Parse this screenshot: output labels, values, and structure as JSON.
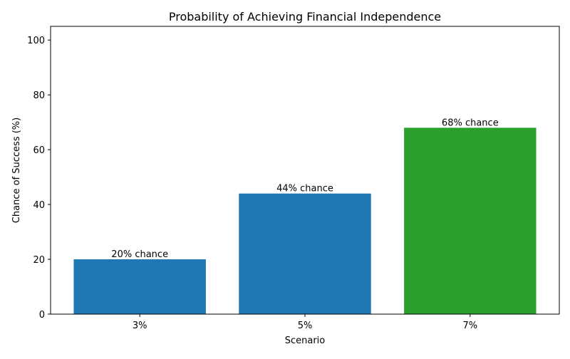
{
  "chart_data": {
    "type": "bar",
    "title": "Probability of Achieving Financial Independence",
    "xlabel": "Scenario",
    "ylabel": "Chance of Success (%)",
    "categories": [
      "3%",
      "5%",
      "7%"
    ],
    "values": [
      20,
      44,
      68
    ],
    "data_labels": [
      "20% chance",
      "44% chance",
      "68% chance"
    ],
    "colors": [
      "#1f77b4",
      "#1f77b4",
      "#2ca02c"
    ],
    "ylim": [
      0,
      105
    ],
    "yticks": [
      0,
      20,
      40,
      60,
      80,
      100
    ],
    "grid": false
  }
}
